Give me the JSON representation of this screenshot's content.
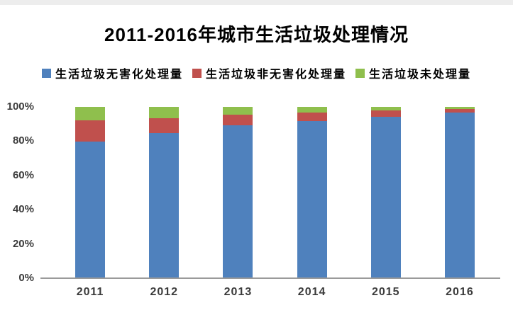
{
  "title": "2011-2016年城市生活垃圾处理情况",
  "chart_data": {
    "type": "bar",
    "stacked": true,
    "title": "2011-2016年城市生活垃圾处理情况",
    "categories": [
      "2011",
      "2012",
      "2013",
      "2014",
      "2015",
      "2016"
    ],
    "series": [
      {
        "name": "生活垃圾无害化处理量",
        "color": "#4F81BD",
        "values": [
          79.7,
          84.8,
          89.3,
          91.8,
          94.1,
          96.6
        ]
      },
      {
        "name": "生活垃圾非无害化处理量",
        "color": "#C0504D",
        "values": [
          12.3,
          8.8,
          6.2,
          5.0,
          3.9,
          2.2
        ]
      },
      {
        "name": "生活垃圾未处理量",
        "color": "#8FBF4D",
        "values": [
          8.0,
          6.4,
          4.5,
          3.2,
          2.0,
          1.2
        ]
      }
    ],
    "xlabel": "",
    "ylabel": "",
    "ylim": [
      0,
      100
    ],
    "yticks": [
      "0%",
      "20%",
      "40%",
      "60%",
      "80%",
      "100%"
    ],
    "unit": "percent",
    "legend_position": "top",
    "grid": false,
    "axis_color": "#9a9a9a",
    "label_color": "#3b3b3b"
  }
}
